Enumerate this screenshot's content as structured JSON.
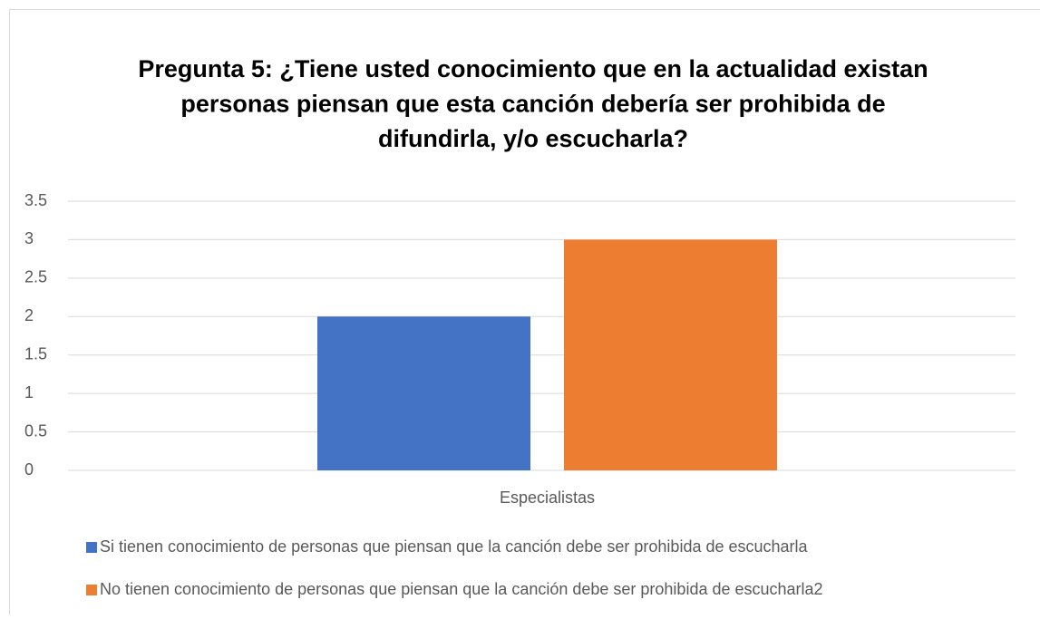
{
  "chart_data": {
    "type": "bar",
    "title": [
      "Pregunta 5: ¿Tiene usted conocimiento que en la actualidad existan",
      "personas piensan que esta canción debería ser prohibida de",
      "difundirla, y/o escucharla?"
    ],
    "categories": [
      "Especialistas"
    ],
    "series": [
      {
        "name": "Si tienen conocimiento de personas que piensan que la canción debe ser prohibida de escucharla",
        "color": "#4472c4",
        "values": [
          2
        ]
      },
      {
        "name": "No tienen conocimiento de personas que piensan que la canción debe ser prohibida de escucharla2",
        "color": "#ed7d31",
        "values": [
          3
        ]
      }
    ],
    "ylim": [
      0,
      3.5
    ],
    "yticks": [
      0,
      0.5,
      1,
      1.5,
      2,
      2.5,
      3,
      3.5
    ],
    "grid": true,
    "legend": "bottom"
  }
}
